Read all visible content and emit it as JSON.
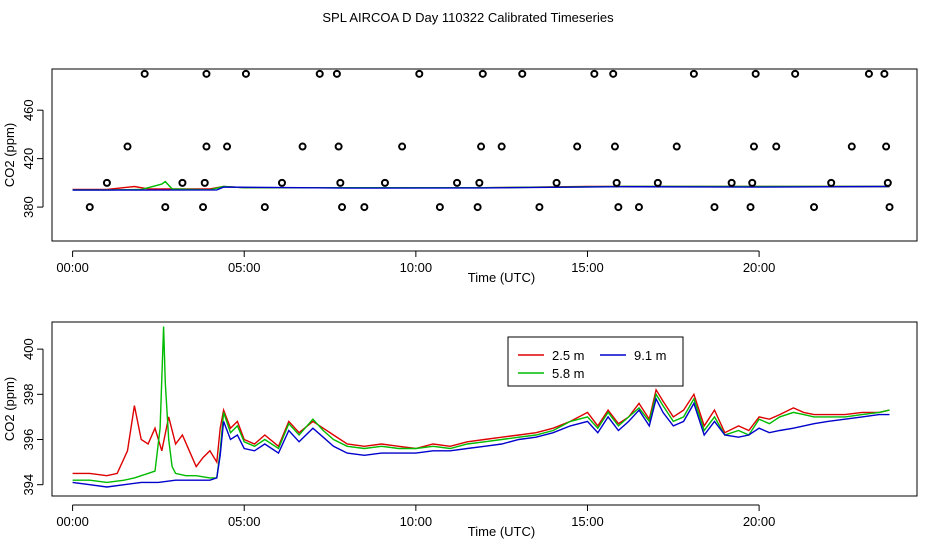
{
  "page_title": "SPL AIRCOA D  Day 110322  Calibrated Timeseries",
  "colors": {
    "red": "#dd0000",
    "green": "#00bb00",
    "blue": "#0000cc",
    "axis": "#000000"
  },
  "chart_data": [
    {
      "type": "scatter",
      "title": "",
      "xlabel": "Time (UTC)",
      "ylabel": "CO2 (ppm)",
      "x_unit": "hours UTC",
      "xlim": [
        -0.6,
        24.6
      ],
      "ylim": [
        352,
        494
      ],
      "xticks": [
        0,
        5,
        10,
        15,
        20
      ],
      "xtick_labels": [
        "00:00",
        "05:00",
        "10:00",
        "15:00",
        "20:00"
      ],
      "yticks": [
        380,
        420,
        460
      ],
      "ytick_labels": [
        "380",
        "420",
        "460"
      ],
      "points": [
        [
          0.5,
          380
        ],
        [
          1.0,
          400
        ],
        [
          1.6,
          430
        ],
        [
          2.1,
          490
        ],
        [
          2.7,
          380
        ],
        [
          3.2,
          400
        ],
        [
          3.8,
          380
        ],
        [
          3.85,
          400
        ],
        [
          3.9,
          430
        ],
        [
          3.9,
          490
        ],
        [
          4.5,
          430
        ],
        [
          5.05,
          490
        ],
        [
          5.6,
          380
        ],
        [
          6.1,
          400
        ],
        [
          6.7,
          430
        ],
        [
          7.2,
          490
        ],
        [
          7.7,
          490
        ],
        [
          7.75,
          430
        ],
        [
          7.8,
          400
        ],
        [
          7.85,
          380
        ],
        [
          8.5,
          380
        ],
        [
          9.1,
          400
        ],
        [
          9.6,
          430
        ],
        [
          10.1,
          490
        ],
        [
          10.7,
          380
        ],
        [
          11.2,
          400
        ],
        [
          11.8,
          380
        ],
        [
          11.85,
          400
        ],
        [
          11.9,
          430
        ],
        [
          11.95,
          490
        ],
        [
          12.5,
          430
        ],
        [
          13.1,
          490
        ],
        [
          13.6,
          380
        ],
        [
          14.1,
          400
        ],
        [
          14.7,
          430
        ],
        [
          15.2,
          490
        ],
        [
          15.75,
          490
        ],
        [
          15.8,
          430
        ],
        [
          15.85,
          400
        ],
        [
          15.9,
          380
        ],
        [
          16.5,
          380
        ],
        [
          17.05,
          400
        ],
        [
          17.6,
          430
        ],
        [
          18.1,
          490
        ],
        [
          18.7,
          380
        ],
        [
          19.2,
          400
        ],
        [
          19.75,
          380
        ],
        [
          19.8,
          400
        ],
        [
          19.85,
          430
        ],
        [
          19.9,
          490
        ],
        [
          20.5,
          430
        ],
        [
          21.05,
          490
        ],
        [
          21.6,
          380
        ],
        [
          22.1,
          400
        ],
        [
          22.7,
          430
        ],
        [
          23.2,
          490
        ],
        [
          23.65,
          490
        ],
        [
          23.7,
          430
        ],
        [
          23.75,
          400
        ],
        [
          23.8,
          380
        ]
      ],
      "series": [
        {
          "color": "#dd0000",
          "x": [
            0,
            1,
            1.8,
            2.2,
            3,
            4,
            4.4,
            5,
            6,
            8,
            10,
            12,
            15,
            18,
            20,
            23.8
          ],
          "values": [
            394.5,
            394.5,
            397,
            395,
            395,
            395,
            397,
            396,
            396,
            396,
            396,
            396,
            397,
            397,
            397,
            397
          ]
        },
        {
          "color": "#00bb00",
          "x": [
            0,
            1,
            2,
            2.6,
            2.7,
            2.9,
            4,
            4.4,
            5,
            8,
            12,
            16,
            20,
            23.8
          ],
          "values": [
            394.2,
            394.2,
            394.5,
            399,
            401,
            395,
            394.3,
            397,
            396,
            396,
            396,
            397,
            397,
            397
          ]
        },
        {
          "color": "#0000cc",
          "x": [
            0,
            4.2,
            4.4,
            8,
            12,
            16,
            20,
            23.8
          ],
          "values": [
            394,
            394.2,
            396.5,
            395.7,
            395.8,
            396.8,
            396.5,
            397
          ]
        }
      ]
    },
    {
      "type": "line",
      "title": "",
      "xlabel": "Time (UTC)",
      "ylabel": "CO2 (ppm)",
      "x_unit": "hours UTC",
      "xlim": [
        -0.6,
        24.6
      ],
      "ylim": [
        393.5,
        401.2
      ],
      "xticks": [
        0,
        5,
        10,
        15,
        20
      ],
      "xtick_labels": [
        "00:00",
        "05:00",
        "10:00",
        "15:00",
        "20:00"
      ],
      "yticks": [
        394,
        396,
        398,
        400
      ],
      "ytick_labels": [
        "394",
        "396",
        "398",
        "400"
      ],
      "legend": {
        "position": "top-center",
        "entries": [
          {
            "label": "2.5 m",
            "color": "#dd0000"
          },
          {
            "label": "9.1 m",
            "color": "#0000cc"
          },
          {
            "label": "5.8 m",
            "color": "#00bb00"
          }
        ]
      },
      "series": [
        {
          "name": "2.5 m",
          "color": "#dd0000",
          "x": [
            0,
            0.5,
            1,
            1.3,
            1.6,
            1.8,
            2.0,
            2.2,
            2.4,
            2.6,
            2.8,
            3.0,
            3.2,
            3.4,
            3.6,
            3.8,
            4.0,
            4.2,
            4.3,
            4.4,
            4.6,
            4.8,
            5.0,
            5.3,
            5.6,
            6.0,
            6.3,
            6.6,
            7.0,
            7.3,
            7.6,
            8.0,
            8.5,
            9.0,
            9.5,
            10,
            10.5,
            11,
            11.5,
            12,
            12.5,
            13,
            13.5,
            14,
            14.5,
            15,
            15.3,
            15.6,
            15.9,
            16.2,
            16.5,
            16.8,
            17.0,
            17.2,
            17.5,
            17.8,
            18.1,
            18.4,
            18.7,
            19,
            19.4,
            19.7,
            20,
            20.3,
            20.6,
            21,
            21.3,
            21.6,
            22,
            22.5,
            23,
            23.5,
            23.8
          ],
          "values": [
            394.5,
            394.5,
            394.4,
            394.5,
            395.5,
            397.5,
            396,
            395.8,
            396.5,
            395.5,
            397,
            395.8,
            396.2,
            395.5,
            394.8,
            395.2,
            395.5,
            395,
            396.5,
            397.3,
            396.5,
            396.8,
            396,
            395.8,
            396.2,
            395.7,
            396.8,
            396.3,
            396.8,
            396.5,
            396.2,
            395.8,
            395.7,
            395.8,
            395.7,
            395.6,
            395.8,
            395.7,
            395.9,
            396.0,
            396.1,
            396.2,
            396.3,
            396.5,
            396.8,
            397.2,
            396.6,
            397.3,
            396.7,
            397.0,
            397.6,
            396.9,
            398.2,
            397.7,
            397.0,
            397.3,
            398.0,
            396.6,
            397.3,
            396.3,
            396.6,
            396.4,
            397.0,
            396.9,
            397.1,
            397.4,
            397.2,
            397.1,
            397.1,
            397.1,
            397.2,
            397.2,
            397.3
          ]
        },
        {
          "name": "5.8 m",
          "color": "#00bb00",
          "x": [
            0,
            0.5,
            1,
            1.5,
            1.8,
            2.0,
            2.2,
            2.4,
            2.55,
            2.65,
            2.7,
            2.8,
            2.9,
            3.0,
            3.3,
            3.6,
            4.0,
            4.2,
            4.3,
            4.4,
            4.6,
            4.8,
            5.0,
            5.3,
            5.6,
            6.0,
            6.3,
            6.6,
            7.0,
            7.3,
            7.6,
            8.0,
            8.5,
            9.0,
            9.5,
            10,
            10.5,
            11,
            11.5,
            12,
            12.5,
            13,
            13.5,
            14,
            14.5,
            15,
            15.3,
            15.6,
            15.9,
            16.2,
            16.5,
            16.8,
            17.0,
            17.2,
            17.5,
            17.8,
            18.1,
            18.4,
            18.7,
            19,
            19.4,
            19.7,
            20,
            20.3,
            20.6,
            21,
            21.3,
            21.6,
            22,
            22.5,
            23,
            23.5,
            23.8
          ],
          "values": [
            394.2,
            394.2,
            394.1,
            394.2,
            394.3,
            394.4,
            394.5,
            394.6,
            396.5,
            401.0,
            398.5,
            396,
            394.8,
            394.5,
            394.4,
            394.4,
            394.3,
            394.3,
            395.5,
            397.2,
            396.3,
            396.6,
            395.9,
            395.7,
            396.0,
            395.6,
            396.7,
            396.2,
            396.9,
            396.4,
            396.0,
            395.7,
            395.6,
            395.7,
            395.6,
            395.6,
            395.7,
            395.6,
            395.8,
            395.9,
            396.0,
            396.1,
            396.2,
            396.4,
            396.8,
            397.0,
            396.5,
            397.2,
            396.6,
            397.0,
            397.4,
            396.8,
            398.0,
            397.5,
            396.8,
            397.0,
            397.8,
            396.4,
            397.0,
            396.2,
            396.4,
            396.2,
            396.9,
            396.7,
            397.0,
            397.2,
            397.1,
            397.0,
            397.0,
            397.0,
            397.1,
            397.2,
            397.3
          ]
        },
        {
          "name": "9.1 m",
          "color": "#0000cc",
          "x": [
            0,
            0.5,
            1,
            1.5,
            2,
            2.5,
            3,
            3.5,
            4.0,
            4.2,
            4.3,
            4.4,
            4.6,
            4.8,
            5.0,
            5.3,
            5.6,
            6.0,
            6.3,
            6.6,
            7.0,
            7.3,
            7.6,
            8.0,
            8.5,
            9.0,
            9.5,
            10,
            10.5,
            11,
            11.5,
            12,
            12.5,
            13,
            13.5,
            14,
            14.5,
            15,
            15.3,
            15.6,
            15.9,
            16.2,
            16.5,
            16.8,
            17.0,
            17.2,
            17.5,
            17.8,
            18.1,
            18.4,
            18.7,
            19,
            19.4,
            19.7,
            20,
            20.3,
            20.6,
            21,
            21.3,
            21.6,
            22,
            22.5,
            23,
            23.5,
            23.8
          ],
          "values": [
            394.1,
            394.0,
            393.9,
            394.0,
            394.1,
            394.1,
            394.2,
            394.2,
            394.2,
            394.3,
            395.3,
            396.8,
            396.0,
            396.2,
            395.6,
            395.5,
            395.8,
            395.4,
            396.4,
            395.9,
            396.5,
            396.1,
            395.7,
            395.4,
            395.3,
            395.4,
            395.4,
            395.4,
            395.5,
            395.5,
            395.6,
            395.7,
            395.8,
            396.0,
            396.1,
            396.3,
            396.6,
            396.8,
            396.3,
            397.0,
            396.4,
            396.8,
            397.3,
            396.6,
            397.8,
            397.2,
            396.6,
            396.8,
            397.6,
            396.2,
            396.8,
            396.2,
            396.1,
            396.2,
            396.5,
            396.3,
            396.4,
            396.5,
            396.6,
            396.7,
            396.8,
            396.9,
            397.0,
            397.1,
            397.1
          ]
        }
      ]
    }
  ]
}
